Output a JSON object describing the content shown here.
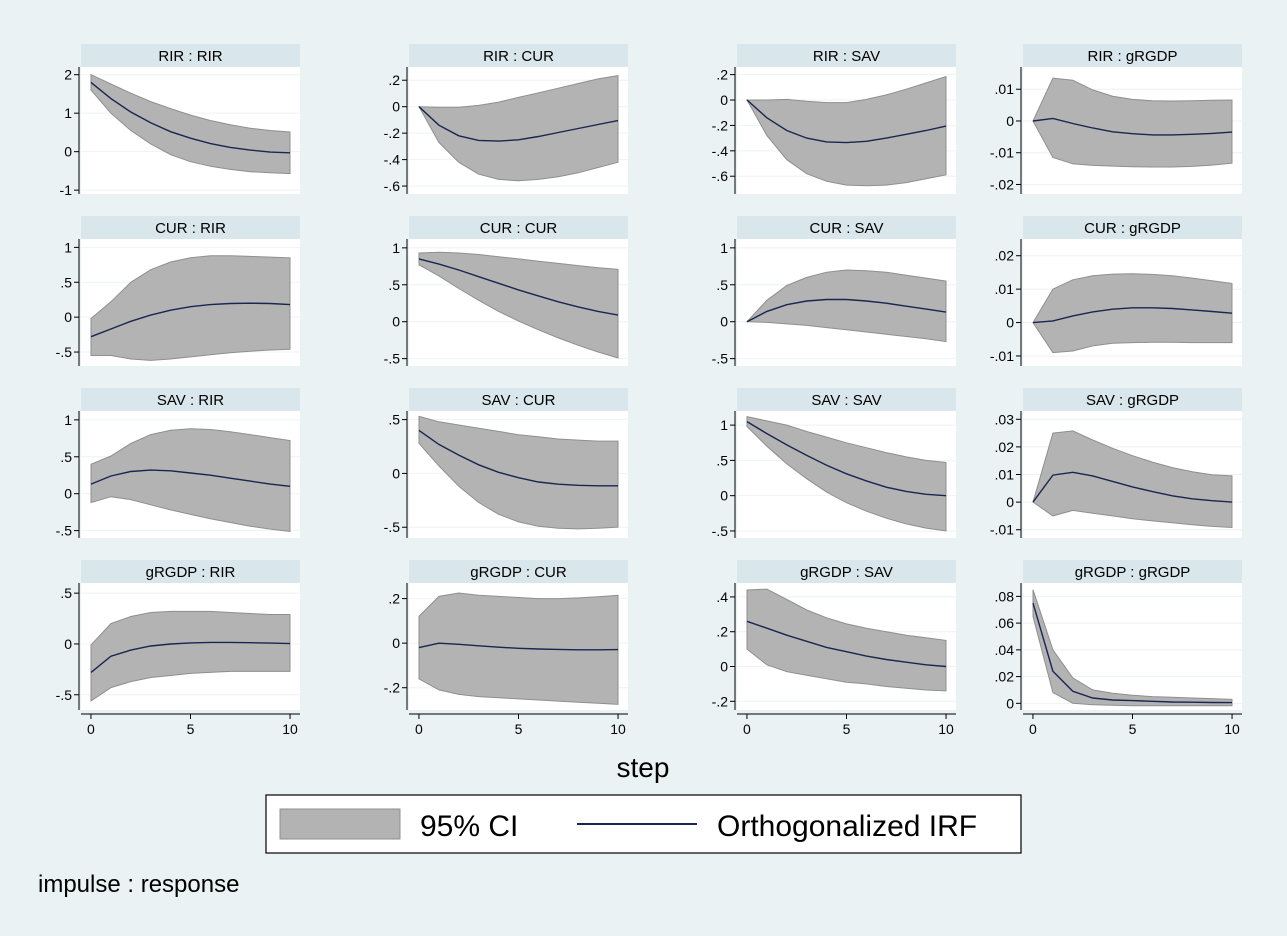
{
  "chart_data": {
    "type": "line",
    "xlabel": "step",
    "note": "impulse : response",
    "legend": {
      "position": "bottom",
      "items": [
        "95% CI",
        "Orthogonalized IRF"
      ]
    },
    "series_names": [
      "95% CI",
      "Orthogonalized IRF"
    ],
    "colors": {
      "ci_band": "#b3b3b3",
      "irf_line": "#1a2550",
      "strip": "#d9e6eb",
      "background": "#eaf2f3"
    },
    "x": [
      0,
      1,
      2,
      3,
      4,
      5,
      6,
      7,
      8,
      9,
      10
    ],
    "xticks": [
      0,
      5,
      10
    ],
    "xtick_labels": [
      "0",
      "5",
      "10"
    ],
    "panels": [
      {
        "title": "RIR : RIR",
        "ylim": [
          -1.1,
          2.2
        ],
        "yticks": [
          -1,
          0,
          1,
          2
        ],
        "ytick_labels": [
          "-1",
          "0",
          "1",
          "2"
        ],
        "irf": [
          1.8,
          1.38,
          1.03,
          0.75,
          0.52,
          0.35,
          0.21,
          0.11,
          0.04,
          -0.01,
          -0.03
        ],
        "lower": [
          1.6,
          1.0,
          0.55,
          0.2,
          -0.08,
          -0.26,
          -0.38,
          -0.46,
          -0.52,
          -0.55,
          -0.57
        ],
        "upper": [
          2.0,
          1.76,
          1.52,
          1.3,
          1.12,
          0.95,
          0.81,
          0.7,
          0.61,
          0.55,
          0.51
        ]
      },
      {
        "title": "RIR : CUR",
        "ylim": [
          -0.66,
          0.3
        ],
        "yticks": [
          -0.6,
          -0.4,
          -0.2,
          0,
          0.2
        ],
        "ytick_labels": [
          "-.6",
          "-.4",
          "-.2",
          "0",
          ".2"
        ],
        "irf": [
          0,
          -0.14,
          -0.22,
          -0.255,
          -0.26,
          -0.25,
          -0.225,
          -0.195,
          -0.165,
          -0.135,
          -0.105
        ],
        "lower": [
          0,
          -0.27,
          -0.42,
          -0.51,
          -0.55,
          -0.56,
          -0.55,
          -0.53,
          -0.5,
          -0.46,
          -0.42
        ],
        "upper": [
          0,
          -0.005,
          -0.005,
          0.01,
          0.035,
          0.07,
          0.105,
          0.14,
          0.175,
          0.21,
          0.235
        ]
      },
      {
        "title": "RIR : SAV",
        "ylim": [
          -0.74,
          0.26
        ],
        "yticks": [
          -0.6,
          -0.4,
          -0.2,
          0,
          0.2
        ],
        "ytick_labels": [
          "-.6",
          "-.4",
          "-.2",
          "0",
          ".2"
        ],
        "irf": [
          0,
          -0.14,
          -0.24,
          -0.3,
          -0.33,
          -0.335,
          -0.325,
          -0.3,
          -0.27,
          -0.24,
          -0.205
        ],
        "lower": [
          0,
          -0.28,
          -0.47,
          -0.58,
          -0.64,
          -0.67,
          -0.675,
          -0.67,
          -0.65,
          -0.62,
          -0.59
        ],
        "upper": [
          0,
          0,
          0.005,
          -0.01,
          -0.02,
          -0.02,
          0.005,
          0.04,
          0.085,
          0.135,
          0.185
        ]
      },
      {
        "title": "RIR : gRGDP",
        "ylim": [
          -0.023,
          0.017
        ],
        "yticks": [
          -0.02,
          -0.01,
          0,
          0.01
        ],
        "ytick_labels": [
          "-.02",
          "-.01",
          "0",
          ".01"
        ],
        "irf": [
          0,
          0.0008,
          -0.0008,
          -0.0022,
          -0.0034,
          -0.004,
          -0.0044,
          -0.0044,
          -0.0042,
          -0.0039,
          -0.0035
        ],
        "lower": [
          0,
          -0.0115,
          -0.0135,
          -0.014,
          -0.0142,
          -0.0144,
          -0.0145,
          -0.0145,
          -0.0143,
          -0.0139,
          -0.0133
        ],
        "upper": [
          0,
          0.0135,
          0.0128,
          0.0098,
          0.0078,
          0.0068,
          0.0064,
          0.0063,
          0.0064,
          0.0065,
          0.0066
        ]
      },
      {
        "title": "CUR : RIR",
        "ylim": [
          -0.7,
          1.12
        ],
        "yticks": [
          -0.5,
          0,
          0.5,
          1
        ],
        "ytick_labels": [
          "-.5",
          "0",
          ".5",
          "1"
        ],
        "irf": [
          -0.28,
          -0.17,
          -0.06,
          0.03,
          0.1,
          0.15,
          0.18,
          0.195,
          0.2,
          0.195,
          0.18
        ],
        "lower": [
          -0.55,
          -0.55,
          -0.6,
          -0.62,
          -0.6,
          -0.57,
          -0.54,
          -0.51,
          -0.49,
          -0.47,
          -0.46
        ],
        "upper": [
          -0.02,
          0.22,
          0.5,
          0.68,
          0.79,
          0.85,
          0.88,
          0.88,
          0.87,
          0.86,
          0.85
        ]
      },
      {
        "title": "CUR : CUR",
        "ylim": [
          -0.6,
          1.12
        ],
        "yticks": [
          -0.5,
          0,
          0.5,
          1
        ],
        "ytick_labels": [
          "-.5",
          "0",
          ".5",
          "1"
        ],
        "irf": [
          0.85,
          0.78,
          0.7,
          0.61,
          0.52,
          0.43,
          0.35,
          0.27,
          0.2,
          0.14,
          0.09
        ],
        "lower": [
          0.77,
          0.62,
          0.45,
          0.29,
          0.14,
          0.01,
          -0.11,
          -0.22,
          -0.32,
          -0.41,
          -0.49
        ],
        "upper": [
          0.93,
          0.94,
          0.93,
          0.91,
          0.88,
          0.85,
          0.82,
          0.79,
          0.76,
          0.73,
          0.71
        ]
      },
      {
        "title": "CUR : SAV",
        "ylim": [
          -0.6,
          1.12
        ],
        "yticks": [
          -0.5,
          0,
          0.5,
          1
        ],
        "ytick_labels": [
          "-.5",
          "0",
          ".5",
          "1"
        ],
        "irf": [
          0,
          0.14,
          0.23,
          0.28,
          0.3,
          0.3,
          0.28,
          0.25,
          0.21,
          0.17,
          0.13
        ],
        "lower": [
          0,
          -0.01,
          -0.03,
          -0.05,
          -0.08,
          -0.11,
          -0.14,
          -0.17,
          -0.2,
          -0.23,
          -0.27
        ],
        "upper": [
          0,
          0.29,
          0.49,
          0.6,
          0.67,
          0.7,
          0.69,
          0.67,
          0.63,
          0.59,
          0.55
        ]
      },
      {
        "title": "CUR : gRGDP",
        "ylim": [
          -0.013,
          0.025
        ],
        "yticks": [
          -0.01,
          0,
          0.01,
          0.02
        ],
        "ytick_labels": [
          "-.01",
          "0",
          ".01",
          ".02"
        ],
        "irf": [
          0,
          0.0005,
          0.002,
          0.0032,
          0.004,
          0.0044,
          0.0044,
          0.0042,
          0.0038,
          0.0033,
          0.0028
        ],
        "lower": [
          0,
          -0.009,
          -0.0085,
          -0.007,
          -0.0062,
          -0.006,
          -0.0059,
          -0.0059,
          -0.006,
          -0.006,
          -0.006
        ],
        "upper": [
          0,
          0.01,
          0.0128,
          0.014,
          0.0145,
          0.0146,
          0.0144,
          0.014,
          0.0133,
          0.0125,
          0.0117
        ]
      },
      {
        "title": "SAV : RIR",
        "ylim": [
          -0.6,
          1.12
        ],
        "yticks": [
          -0.5,
          0,
          0.5,
          1
        ],
        "ytick_labels": [
          "-.5",
          "0",
          ".5",
          "1"
        ],
        "irf": [
          0.13,
          0.24,
          0.3,
          0.32,
          0.31,
          0.28,
          0.25,
          0.21,
          0.17,
          0.13,
          0.1
        ],
        "lower": [
          -0.12,
          -0.04,
          -0.08,
          -0.15,
          -0.22,
          -0.28,
          -0.34,
          -0.39,
          -0.44,
          -0.48,
          -0.51
        ],
        "upper": [
          0.4,
          0.51,
          0.68,
          0.8,
          0.86,
          0.88,
          0.87,
          0.84,
          0.8,
          0.76,
          0.72
        ]
      },
      {
        "title": "SAV : CUR",
        "ylim": [
          -0.6,
          0.58
        ],
        "yticks": [
          -0.5,
          0,
          0.5
        ],
        "ytick_labels": [
          "-.5",
          "0",
          ".5"
        ],
        "irf": [
          0.4,
          0.27,
          0.17,
          0.08,
          0.01,
          -0.04,
          -0.08,
          -0.1,
          -0.11,
          -0.115,
          -0.115
        ],
        "lower": [
          0.28,
          0.07,
          -0.12,
          -0.27,
          -0.38,
          -0.45,
          -0.49,
          -0.51,
          -0.515,
          -0.51,
          -0.5
        ],
        "upper": [
          0.53,
          0.48,
          0.45,
          0.42,
          0.39,
          0.36,
          0.34,
          0.32,
          0.31,
          0.3,
          0.3
        ]
      },
      {
        "title": "SAV : SAV",
        "ylim": [
          -0.6,
          1.2
        ],
        "yticks": [
          -0.5,
          0,
          0.5,
          1
        ],
        "ytick_labels": [
          "-.5",
          "0",
          ".5",
          "1"
        ],
        "irf": [
          1.05,
          0.88,
          0.72,
          0.57,
          0.43,
          0.31,
          0.21,
          0.12,
          0.06,
          0.02,
          0.0
        ],
        "lower": [
          0.98,
          0.7,
          0.45,
          0.24,
          0.05,
          -0.1,
          -0.22,
          -0.32,
          -0.4,
          -0.46,
          -0.5
        ],
        "upper": [
          1.12,
          1.06,
          1.0,
          0.91,
          0.83,
          0.75,
          0.68,
          0.61,
          0.55,
          0.5,
          0.47
        ]
      },
      {
        "title": "SAV : gRGDP",
        "ylim": [
          -0.013,
          0.033
        ],
        "yticks": [
          -0.01,
          0,
          0.01,
          0.02,
          0.03
        ],
        "ytick_labels": [
          "-.01",
          "0",
          ".01",
          ".02",
          ".03"
        ],
        "irf": [
          0,
          0.0098,
          0.0108,
          0.0095,
          0.0075,
          0.0055,
          0.0038,
          0.0023,
          0.0012,
          0.0005,
          0.0
        ],
        "lower": [
          0,
          -0.005,
          -0.003,
          -0.004,
          -0.005,
          -0.006,
          -0.0068,
          -0.0075,
          -0.0082,
          -0.0088,
          -0.0092
        ],
        "upper": [
          0,
          0.025,
          0.0258,
          0.0225,
          0.0195,
          0.0168,
          0.0145,
          0.0125,
          0.011,
          0.0099,
          0.0095
        ]
      },
      {
        "title": "gRGDP : RIR",
        "ylim": [
          -0.65,
          0.6
        ],
        "yticks": [
          -0.5,
          0,
          0.5
        ],
        "ytick_labels": [
          "-.5",
          "0",
          ".5"
        ],
        "irf": [
          -0.28,
          -0.12,
          -0.06,
          -0.02,
          0.0,
          0.01,
          0.015,
          0.015,
          0.012,
          0.008,
          0.004
        ],
        "lower": [
          -0.56,
          -0.43,
          -0.37,
          -0.33,
          -0.31,
          -0.29,
          -0.28,
          -0.27,
          -0.27,
          -0.27,
          -0.27
        ],
        "upper": [
          -0.01,
          0.2,
          0.27,
          0.31,
          0.32,
          0.32,
          0.32,
          0.31,
          0.3,
          0.29,
          0.29
        ]
      },
      {
        "title": "gRGDP : CUR",
        "ylim": [
          -0.3,
          0.27
        ],
        "yticks": [
          -0.2,
          0,
          0.2
        ],
        "ytick_labels": [
          "-.2",
          "0",
          ".2"
        ],
        "irf": [
          -0.02,
          0.0,
          -0.005,
          -0.012,
          -0.018,
          -0.023,
          -0.026,
          -0.028,
          -0.03,
          -0.03,
          -0.029
        ],
        "lower": [
          -0.16,
          -0.21,
          -0.23,
          -0.24,
          -0.245,
          -0.25,
          -0.255,
          -0.26,
          -0.265,
          -0.27,
          -0.275
        ],
        "upper": [
          0.12,
          0.21,
          0.225,
          0.215,
          0.21,
          0.205,
          0.2,
          0.2,
          0.203,
          0.208,
          0.215
        ]
      },
      {
        "title": "gRGDP : SAV",
        "ylim": [
          -0.25,
          0.48
        ],
        "yticks": [
          -0.2,
          0,
          0.2,
          0.4
        ],
        "ytick_labels": [
          "-.2",
          "0",
          ".2",
          ".4"
        ],
        "irf": [
          0.26,
          0.22,
          0.18,
          0.145,
          0.11,
          0.085,
          0.06,
          0.04,
          0.025,
          0.01,
          0.0
        ],
        "lower": [
          0.1,
          0.01,
          -0.03,
          -0.05,
          -0.07,
          -0.09,
          -0.1,
          -0.115,
          -0.125,
          -0.135,
          -0.14
        ],
        "upper": [
          0.44,
          0.445,
          0.385,
          0.325,
          0.28,
          0.245,
          0.22,
          0.2,
          0.18,
          0.165,
          0.15
        ]
      },
      {
        "title": "gRGDP : gRGDP",
        "ylim": [
          -0.005,
          0.09
        ],
        "yticks": [
          0,
          0.02,
          0.04,
          0.06,
          0.08
        ],
        "ytick_labels": [
          "0",
          ".02",
          ".04",
          ".06",
          ".08"
        ],
        "irf": [
          0.075,
          0.024,
          0.009,
          0.004,
          0.0025,
          0.002,
          0.0015,
          0.001,
          0.0008,
          0.0006,
          0.0005
        ],
        "lower": [
          0.065,
          0.008,
          0.0,
          -0.001,
          -0.0015,
          -0.0018,
          -0.0018,
          -0.0018,
          -0.0018,
          -0.0018,
          -0.0018
        ],
        "upper": [
          0.085,
          0.04,
          0.019,
          0.01,
          0.0075,
          0.006,
          0.005,
          0.0045,
          0.004,
          0.0035,
          0.003
        ]
      }
    ]
  }
}
